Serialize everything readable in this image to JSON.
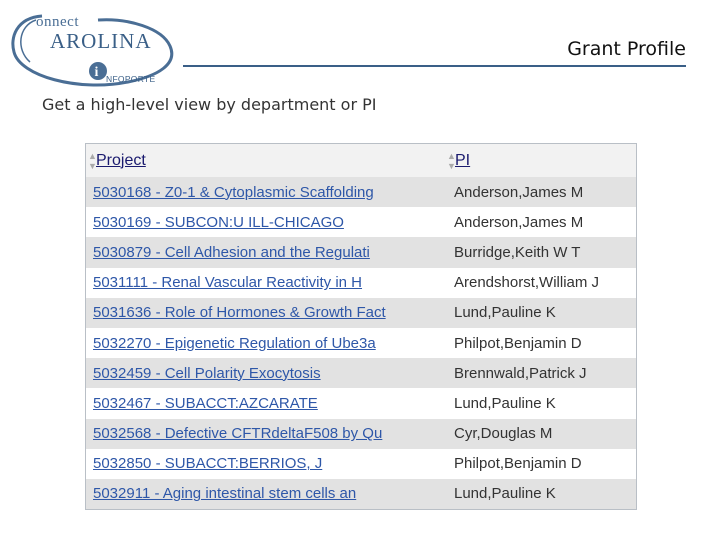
{
  "logo": {
    "line1": "onnect",
    "line2": "AROLINA",
    "line3": "NFOPORTE"
  },
  "header": {
    "title": "Grant Profile",
    "subtitle": "Get a high-level view by department or PI"
  },
  "grid": {
    "columns": [
      "Project",
      "PI"
    ],
    "rows": [
      {
        "project": "5030168 - Z0-1 & Cytoplasmic Scaffolding",
        "pi": "Anderson,James M"
      },
      {
        "project": "5030169 - SUBCON:U ILL-CHICAGO",
        "pi": "Anderson,James M"
      },
      {
        "project": "5030879 - Cell Adhesion and the Regulati",
        "pi": "Burridge,Keith W T"
      },
      {
        "project": "5031111 - Renal Vascular Reactivity in H",
        "pi": "Arendshorst,William J"
      },
      {
        "project": "5031636 - Role of Hormones & Growth Fact",
        "pi": "Lund,Pauline K"
      },
      {
        "project": "5032270 - Epigenetic Regulation of Ube3a",
        "pi": "Philpot,Benjamin D"
      },
      {
        "project": "5032459 - Cell Polarity Exocytosis",
        "pi": "Brennwald,Patrick J"
      },
      {
        "project": "5032467 - SUBACCT:AZCARATE",
        "pi": "Lund,Pauline K"
      },
      {
        "project": "5032568 - Defective CFTRdeltaF508 by Qu",
        "pi": "Cyr,Douglas M"
      },
      {
        "project": "5032850 - SUBACCT:BERRIOS, J",
        "pi": "Philpot,Benjamin D"
      },
      {
        "project": "5032911 - Aging intestinal stem cells an",
        "pi": "Lund,Pauline K"
      }
    ]
  },
  "colors": {
    "brand": "#3a5f87",
    "link": "#2e57a8",
    "row_shade": "#e2e2e2"
  },
  "icons": {
    "sort": "sort-arrows-icon",
    "logo_badge": "info-i-icon"
  }
}
